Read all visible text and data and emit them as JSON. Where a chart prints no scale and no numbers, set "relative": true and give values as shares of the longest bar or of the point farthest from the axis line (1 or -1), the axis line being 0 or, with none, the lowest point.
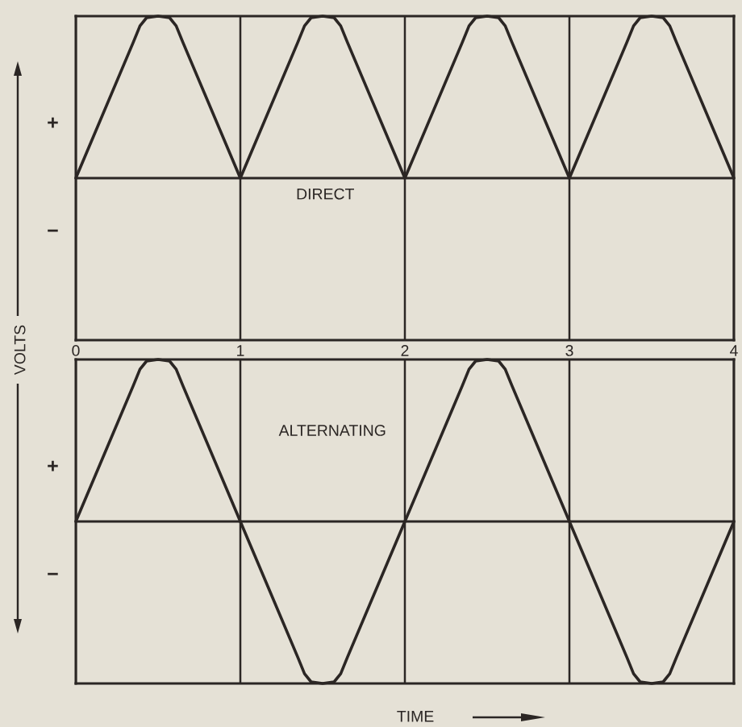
{
  "chart_data": [
    {
      "type": "line",
      "title": "DIRECT",
      "annotations": [
        "+",
        "−",
        "VOLTS"
      ],
      "relative": true,
      "xlim": [
        0,
        4
      ],
      "xticks": [
        0,
        1,
        2,
        3,
        4
      ],
      "grid": "x",
      "tick_labels": "x",
      "x": [
        0,
        0.35,
        0.39,
        0.43,
        0.5,
        0.57,
        0.61,
        0.65,
        1,
        1.35,
        1.39,
        1.43,
        1.5,
        1.57,
        1.61,
        1.65,
        2,
        2.35,
        2.39,
        2.43,
        2.5,
        2.57,
        2.61,
        2.65,
        3,
        3.35,
        3.39,
        3.43,
        3.5,
        3.57,
        3.61,
        3.65,
        4
      ],
      "series": [
        {
          "color": "#2b2624",
          "values": [
            0,
            0.84,
            0.94,
            0.99,
            1,
            0.99,
            0.94,
            0.84,
            0,
            0.84,
            0.94,
            0.99,
            1,
            0.99,
            0.94,
            0.84,
            0,
            0.84,
            0.94,
            0.99,
            1,
            0.99,
            0.94,
            0.84,
            0,
            0.84,
            0.94,
            0.99,
            1,
            0.99,
            0.94,
            0.84,
            0
          ]
        }
      ]
    },
    {
      "type": "line",
      "title": "ALTERNATING",
      "xlabel": "TIME",
      "annotations": [
        "+",
        "−"
      ],
      "relative": true,
      "xlim": [
        0,
        4
      ],
      "xticks": [
        0,
        1,
        2,
        3,
        4
      ],
      "grid": "x",
      "tick_labels": false,
      "x": [
        0,
        0.35,
        0.39,
        0.43,
        0.5,
        0.57,
        0.61,
        0.65,
        1,
        1.35,
        1.39,
        1.43,
        1.5,
        1.57,
        1.61,
        1.65,
        2,
        2.35,
        2.39,
        2.43,
        2.5,
        2.57,
        2.61,
        2.65,
        3,
        3.35,
        3.39,
        3.43,
        3.5,
        3.57,
        3.61,
        3.65,
        4
      ],
      "series": [
        {
          "color": "#2b2624",
          "values": [
            0,
            0.84,
            0.94,
            0.99,
            1,
            0.99,
            0.94,
            0.84,
            0,
            -0.84,
            -0.94,
            -0.99,
            -1,
            -0.99,
            -0.94,
            -0.84,
            0,
            0.84,
            0.94,
            0.99,
            1,
            0.99,
            0.94,
            0.84,
            0,
            -0.84,
            -0.94,
            -0.99,
            -1,
            -0.99,
            -0.94,
            -0.84,
            0
          ]
        }
      ]
    }
  ]
}
